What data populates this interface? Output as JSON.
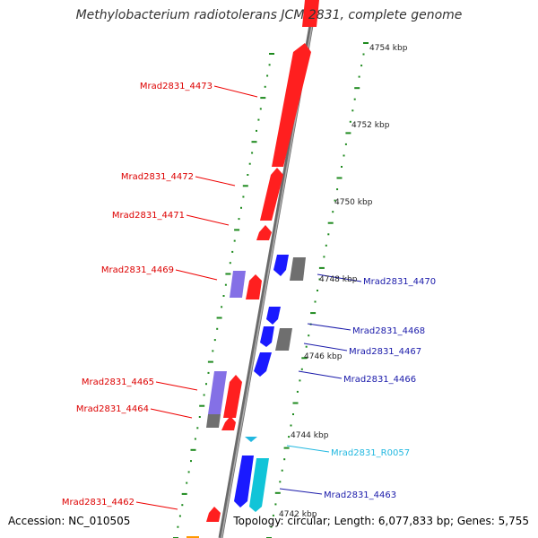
{
  "title": "Methylobacterium radiotolerans JCM 2831, complete genome",
  "footer": {
    "accession": "Accession: NC_010505",
    "topology": "Topology: circular; Length: 6,077,833 bp; Genes: 5,755"
  },
  "colors": {
    "forward_gene": "#ff1f1f",
    "reverse_gene": "#1a1aff",
    "pseudo_or_other": "#6f6f6f",
    "rna": "#11c4d8",
    "domain_purple": "#8470e6",
    "tick": "#1e8a1e",
    "backbone": "#7a7a7a"
  },
  "scale_labels": [
    "4754 kbp",
    "4752 kbp",
    "4750 kbp",
    "4748 kbp",
    "4746 kbp",
    "4744 kbp",
    "4742 kbp"
  ],
  "left_labels": [
    "Mrad2831_4473",
    "Mrad2831_4472",
    "Mrad2831_4471",
    "Mrad2831_4469",
    "Mrad2831_4465",
    "Mrad2831_4464",
    "Mrad2831_4462"
  ],
  "right_labels": [
    "Mrad2831_4470",
    "Mrad2831_4468",
    "Mrad2831_4467",
    "Mrad2831_4466",
    "Mrad2831_R0057",
    "Mrad2831_4463"
  ],
  "right_label_colors": [
    "#1a1aaa",
    "#1a1aaa",
    "#1a1aaa",
    "#1a1aaa",
    "#22b8e0",
    "#1a1aaa"
  ]
}
